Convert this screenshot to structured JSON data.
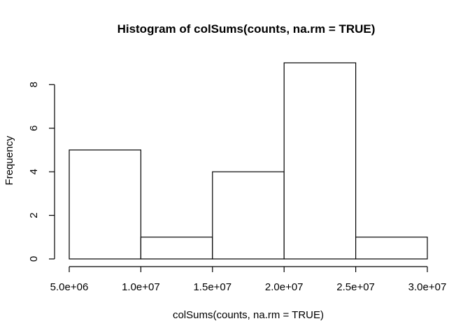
{
  "chart_data": {
    "type": "bar",
    "subtype": "histogram",
    "title": "Histogram of colSums(counts, na.rm = TRUE)",
    "xlabel": "colSums(counts, na.rm = TRUE)",
    "ylabel": "Frequency",
    "bins": [
      {
        "from": 5000000,
        "to": 10000000,
        "count": 5
      },
      {
        "from": 10000000,
        "to": 15000000,
        "count": 1
      },
      {
        "from": 15000000,
        "to": 20000000,
        "count": 4
      },
      {
        "from": 20000000,
        "to": 25000000,
        "count": 9
      },
      {
        "from": 25000000,
        "to": 30000000,
        "count": 1
      }
    ],
    "xlim": [
      5000000,
      30000000
    ],
    "ylim": [
      0,
      9
    ],
    "x_ticks": [
      {
        "value": 5000000,
        "label": "5.0e+06"
      },
      {
        "value": 10000000,
        "label": "1.0e+07"
      },
      {
        "value": 15000000,
        "label": "1.5e+07"
      },
      {
        "value": 20000000,
        "label": "2.0e+07"
      },
      {
        "value": 25000000,
        "label": "2.5e+07"
      },
      {
        "value": 30000000,
        "label": "3.0e+07"
      }
    ],
    "y_ticks": [
      {
        "value": 0,
        "label": "0"
      },
      {
        "value": 2,
        "label": "2"
      },
      {
        "value": 4,
        "label": "4"
      },
      {
        "value": 6,
        "label": "6"
      },
      {
        "value": 8,
        "label": "8"
      }
    ],
    "grid": false,
    "legend": "none",
    "bar_fill": "#ffffff",
    "bar_stroke": "#000000"
  }
}
